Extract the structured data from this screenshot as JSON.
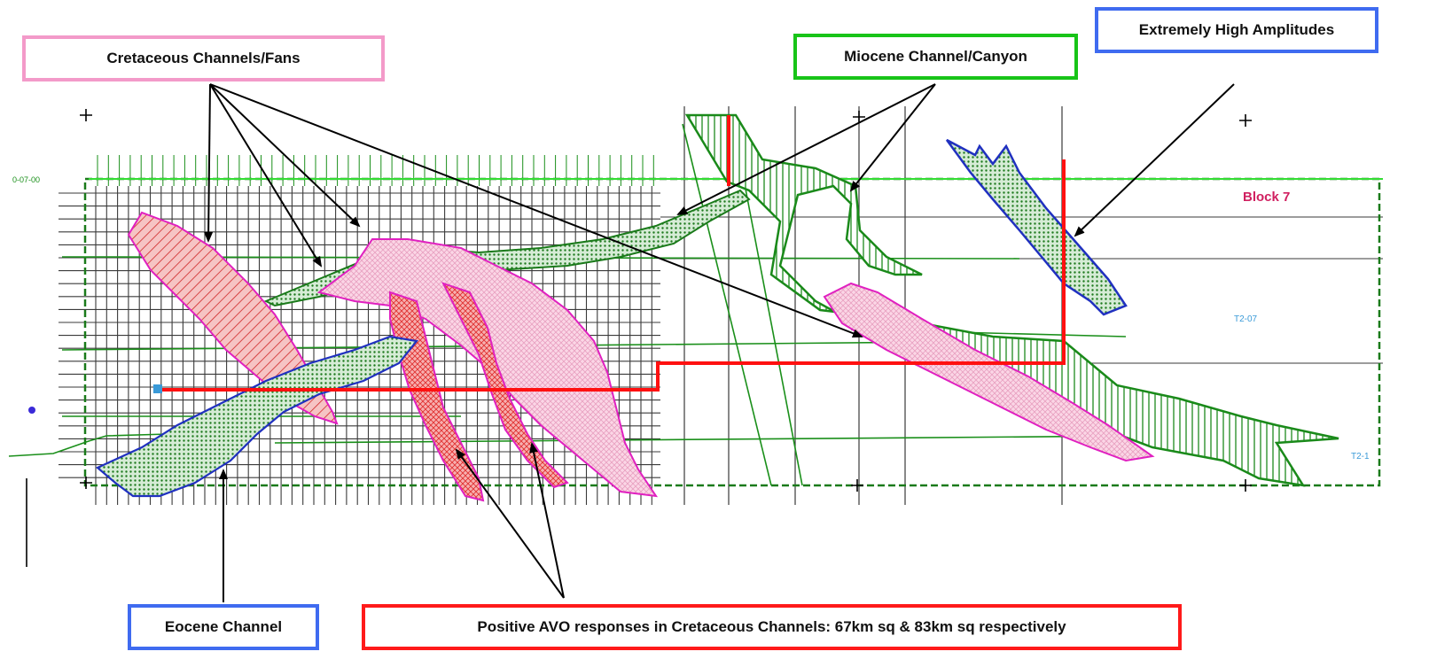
{
  "callouts": {
    "cretaceous": {
      "label": "Cretaceous Channels/Fans",
      "color": "#f39ac9"
    },
    "miocene": {
      "label": "Miocene Channel/Canyon",
      "color": "#18c418"
    },
    "high_amp": {
      "label": "Extremely High Amplitudes",
      "color": "#3f6bf0"
    },
    "eocene": {
      "label": "Eocene Channel",
      "color": "#3f6bf0"
    },
    "avo": {
      "label": "Positive AVO responses in Cretaceous Channels: 67km sq & 83km sq respectively",
      "color": "#ff1a1a"
    }
  },
  "map": {
    "block_label": "Block 7",
    "line_label_upper": "T2-07",
    "line_label_lower": "T2-1",
    "left_line_label": "0-07-00",
    "colors": {
      "grid": "#3a3a3a",
      "green_line": "#1a8f1a",
      "bright_green": "#33dd33",
      "red_line": "#ff1010",
      "pink_fill": "#f9c8dc",
      "pink_edge": "#e020c0",
      "red_fill": "#f4a6a6",
      "green_fill": "#7fbf7f",
      "blue_edge": "#2030c0",
      "block_text": "#d02060",
      "cyan_text": "#3a9ad8"
    }
  }
}
